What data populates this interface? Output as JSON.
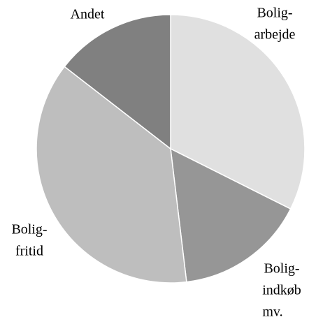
{
  "chart_data": {
    "type": "pie",
    "categories": [
      [
        "Bolig-",
        "arbejde"
      ],
      [
        "Bolig-",
        "indkøb",
        "mv."
      ],
      [
        "Bolig-",
        "fritid"
      ],
      [
        "Andet"
      ]
    ],
    "values": [
      32.4,
      15.7,
      37.4,
      14.5
    ],
    "colors": [
      "#e0e0e0",
      "#969696",
      "#bebebe",
      "#808080"
    ]
  }
}
